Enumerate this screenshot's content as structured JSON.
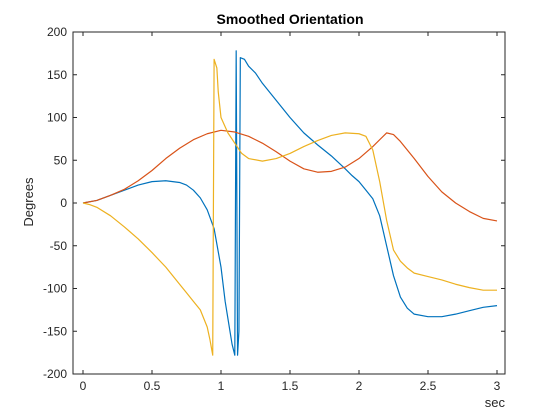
{
  "chart_data": {
    "type": "line",
    "title": "Smoothed Orientation",
    "xlabel": "sec",
    "ylabel": "Degrees",
    "xlim": [
      0,
      3
    ],
    "ylim": [
      -200,
      200
    ],
    "xticks": [
      0,
      0.5,
      1,
      1.5,
      2,
      2.5,
      3
    ],
    "xtick_labels": [
      "0",
      "0.5",
      "1",
      "1.5",
      "2",
      "2.5",
      "3"
    ],
    "yticks": [
      -200,
      -150,
      -100,
      -50,
      0,
      50,
      100,
      150,
      200
    ],
    "ytick_labels": [
      "-200",
      "-150",
      "-100",
      "-50",
      "0",
      "50",
      "100",
      "150",
      "200"
    ],
    "grid": false,
    "legend": "none",
    "series": [
      {
        "color": "#0072BD",
        "points": [
          [
            0,
            0
          ],
          [
            0.1,
            3
          ],
          [
            0.2,
            9
          ],
          [
            0.3,
            15
          ],
          [
            0.4,
            21
          ],
          [
            0.5,
            25
          ],
          [
            0.6,
            26
          ],
          [
            0.7,
            24
          ],
          [
            0.75,
            21
          ],
          [
            0.8,
            15
          ],
          [
            0.85,
            6
          ],
          [
            0.9,
            -8
          ],
          [
            0.95,
            -30
          ],
          [
            1.0,
            -75
          ],
          [
            1.03,
            -115
          ],
          [
            1.06,
            -145
          ],
          [
            1.08,
            -165
          ],
          [
            1.1,
            -178
          ],
          [
            1.11,
            178
          ],
          [
            1.12,
            -178
          ],
          [
            1.13,
            -150
          ],
          [
            1.14,
            170
          ],
          [
            1.17,
            168
          ],
          [
            1.2,
            160
          ],
          [
            1.25,
            152
          ],
          [
            1.3,
            140
          ],
          [
            1.4,
            120
          ],
          [
            1.5,
            100
          ],
          [
            1.6,
            82
          ],
          [
            1.7,
            68
          ],
          [
            1.8,
            55
          ],
          [
            1.9,
            40
          ],
          [
            1.95,
            32
          ],
          [
            2.0,
            25
          ],
          [
            2.05,
            15
          ],
          [
            2.1,
            5
          ],
          [
            2.15,
            -15
          ],
          [
            2.2,
            -50
          ],
          [
            2.25,
            -85
          ],
          [
            2.3,
            -110
          ],
          [
            2.35,
            -123
          ],
          [
            2.4,
            -130
          ],
          [
            2.5,
            -133
          ],
          [
            2.6,
            -133
          ],
          [
            2.7,
            -130
          ],
          [
            2.8,
            -126
          ],
          [
            2.9,
            -122
          ],
          [
            3.0,
            -120
          ]
        ]
      },
      {
        "color": "#D95319",
        "points": [
          [
            0,
            0
          ],
          [
            0.1,
            3
          ],
          [
            0.2,
            9
          ],
          [
            0.3,
            16
          ],
          [
            0.4,
            26
          ],
          [
            0.5,
            38
          ],
          [
            0.6,
            52
          ],
          [
            0.7,
            64
          ],
          [
            0.8,
            74
          ],
          [
            0.9,
            81
          ],
          [
            1.0,
            85
          ],
          [
            1.1,
            83
          ],
          [
            1.2,
            78
          ],
          [
            1.3,
            70
          ],
          [
            1.4,
            60
          ],
          [
            1.5,
            49
          ],
          [
            1.6,
            40
          ],
          [
            1.7,
            36
          ],
          [
            1.8,
            37
          ],
          [
            1.9,
            42
          ],
          [
            2.0,
            52
          ],
          [
            2.1,
            66
          ],
          [
            2.2,
            82
          ],
          [
            2.25,
            80
          ],
          [
            2.3,
            72
          ],
          [
            2.4,
            52
          ],
          [
            2.5,
            31
          ],
          [
            2.6,
            13
          ],
          [
            2.7,
            0
          ],
          [
            2.8,
            -10
          ],
          [
            2.9,
            -18
          ],
          [
            3.0,
            -21
          ]
        ]
      },
      {
        "color": "#EDB120",
        "points": [
          [
            0,
            0
          ],
          [
            0.05,
            -2
          ],
          [
            0.1,
            -5
          ],
          [
            0.2,
            -15
          ],
          [
            0.3,
            -28
          ],
          [
            0.4,
            -42
          ],
          [
            0.5,
            -58
          ],
          [
            0.6,
            -75
          ],
          [
            0.7,
            -95
          ],
          [
            0.75,
            -105
          ],
          [
            0.8,
            -115
          ],
          [
            0.85,
            -125
          ],
          [
            0.9,
            -145
          ],
          [
            0.92,
            -160
          ],
          [
            0.94,
            -178
          ],
          [
            0.95,
            168
          ],
          [
            0.97,
            158
          ],
          [
            0.98,
            130
          ],
          [
            1.0,
            100
          ],
          [
            1.05,
            82
          ],
          [
            1.1,
            70
          ],
          [
            1.15,
            58
          ],
          [
            1.2,
            52
          ],
          [
            1.3,
            49
          ],
          [
            1.4,
            52
          ],
          [
            1.5,
            58
          ],
          [
            1.6,
            66
          ],
          [
            1.7,
            73
          ],
          [
            1.8,
            79
          ],
          [
            1.9,
            82
          ],
          [
            2.0,
            81
          ],
          [
            2.05,
            78
          ],
          [
            2.1,
            62
          ],
          [
            2.15,
            25
          ],
          [
            2.2,
            -20
          ],
          [
            2.25,
            -55
          ],
          [
            2.3,
            -68
          ],
          [
            2.35,
            -76
          ],
          [
            2.4,
            -82
          ],
          [
            2.5,
            -86
          ],
          [
            2.6,
            -90
          ],
          [
            2.7,
            -95
          ],
          [
            2.8,
            -99
          ],
          [
            2.9,
            -102
          ],
          [
            3.0,
            -102
          ]
        ]
      }
    ]
  }
}
